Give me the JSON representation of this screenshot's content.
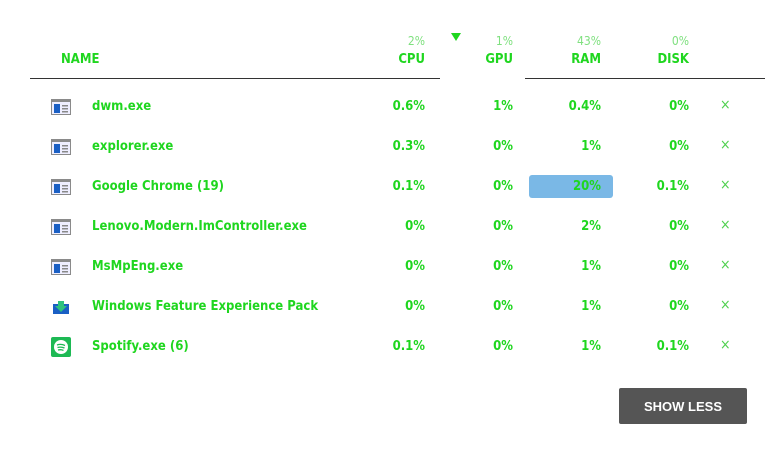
{
  "colors": {
    "accent": "#1fd61f",
    "header_pct": "#7fe07f",
    "highlight": "#7ab8e6",
    "button_bg": "#555555"
  },
  "header": {
    "name": "NAME",
    "columns": [
      {
        "label": "CPU",
        "total": "2%"
      },
      {
        "label": "GPU",
        "total": "1%"
      },
      {
        "label": "RAM",
        "total": "43%"
      },
      {
        "label": "DISK",
        "total": "0%"
      }
    ],
    "sort_icon": "triangle-down-icon"
  },
  "rows": [
    {
      "name": "dwm.exe",
      "icon": "app-window-icon",
      "cpu": "0.6%",
      "gpu": "1%",
      "ram": "0.4%",
      "disk": "0%"
    },
    {
      "name": "explorer.exe",
      "icon": "app-window-icon",
      "cpu": "0.3%",
      "gpu": "0%",
      "ram": "1%",
      "disk": "0%"
    },
    {
      "name": "Google Chrome (19)",
      "icon": "app-window-icon",
      "cpu": "0.1%",
      "gpu": "0%",
      "ram": "20%",
      "disk": "0.1%",
      "ram_highlighted": true
    },
    {
      "name": "Lenovo.Modern.ImController.exe",
      "icon": "app-window-icon",
      "cpu": "0%",
      "gpu": "0%",
      "ram": "2%",
      "disk": "0%"
    },
    {
      "name": "MsMpEng.exe",
      "icon": "app-window-icon",
      "cpu": "0%",
      "gpu": "0%",
      "ram": "1%",
      "disk": "0%"
    },
    {
      "name": "Windows Feature Experience Pack",
      "icon": "feature-pack-icon",
      "cpu": "0%",
      "gpu": "0%",
      "ram": "1%",
      "disk": "0%"
    },
    {
      "name": "Spotify.exe (6)",
      "icon": "spotify-icon",
      "cpu": "0.1%",
      "gpu": "0%",
      "ram": "1%",
      "disk": "0.1%"
    }
  ],
  "close_glyph": "×",
  "show_less": "SHOW LESS"
}
